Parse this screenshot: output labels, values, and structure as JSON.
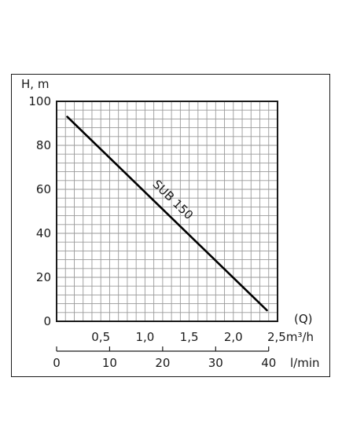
{
  "chart_data": {
    "type": "line",
    "ylabel": "H, m",
    "ylim": [
      0,
      100
    ],
    "yticks": [
      "100",
      "80",
      "60",
      "40",
      "20",
      "0"
    ],
    "yticks_values": [
      100,
      80,
      60,
      40,
      20,
      0
    ],
    "xlim": [
      0,
      2.5
    ],
    "x_unit": "2,5m³/h",
    "x_symbol": "(Q)",
    "xticks": [
      "0,5",
      "1,0",
      "1,5",
      "2,0"
    ],
    "xticks_values": [
      0.5,
      1.0,
      1.5,
      2.0
    ],
    "secondary_xaxis": {
      "unit": "l/min",
      "xlim": [
        0,
        41.67
      ],
      "ticks": [
        "0",
        "10",
        "20",
        "30",
        "40"
      ],
      "ticks_values": [
        0,
        10,
        20,
        30,
        40
      ]
    },
    "grid": true,
    "series": [
      {
        "name": "SUB 150",
        "color": "#000000",
        "x": [
          0.12,
          2.38
        ],
        "y": [
          93,
          5
        ]
      }
    ]
  }
}
